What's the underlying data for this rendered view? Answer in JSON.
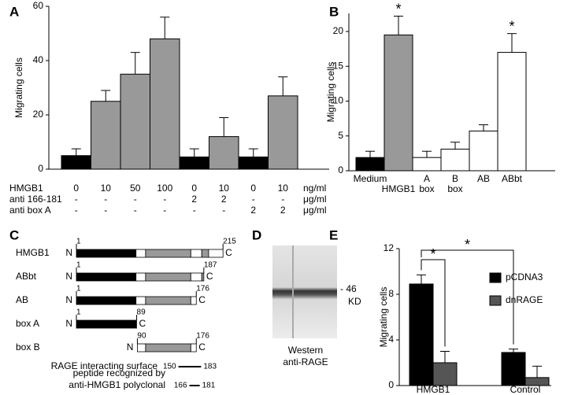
{
  "panel_labels": [
    "A",
    "B",
    "C",
    "D",
    "E"
  ],
  "chart_data": [
    {
      "type": "bar",
      "ylabel": "Migrating cells",
      "categories": [
        "0",
        "10",
        "50",
        "100",
        "0",
        "10",
        "0",
        "10"
      ],
      "values": [
        5,
        25,
        35,
        48,
        4.5,
        12,
        4.5,
        27
      ],
      "errors": [
        2.5,
        4,
        8,
        8,
        3,
        7,
        3,
        7
      ],
      "colors": [
        "#000000",
        "#999999",
        "#999999",
        "#999999",
        "#000000",
        "#999999",
        "#000000",
        "#999999"
      ],
      "ylim": [
        0,
        60
      ],
      "yticks": [
        0,
        20,
        40,
        60
      ],
      "category_row_label": "HMGB1",
      "category_row_unit": "ng/ml",
      "treatments": [
        {
          "name": "anti 166-181",
          "labels": [
            "-",
            "-",
            "-",
            "-",
            "2",
            "2",
            "-",
            "-"
          ],
          "unit": "μg/ml"
        },
        {
          "name": "anti box A",
          "labels": [
            "-",
            "-",
            "-",
            "-",
            "-",
            "-",
            "2",
            "2"
          ],
          "unit": "μg/ml"
        }
      ]
    },
    {
      "type": "bar",
      "ylabel": "Migrating cells",
      "categories": [
        "Medium",
        "HMGB1",
        "A box",
        "B box",
        "AB",
        "ABbt"
      ],
      "values": [
        1.9,
        19.5,
        1.9,
        3.1,
        5.7,
        17
      ],
      "errors": [
        0.9,
        2.7,
        0.9,
        1.0,
        0.9,
        2.7
      ],
      "colors": [
        "#000000",
        "#999999",
        "#ffffff",
        "#ffffff",
        "#ffffff",
        "#ffffff"
      ],
      "value_annotations": [
        null,
        "*",
        null,
        null,
        null,
        "*"
      ],
      "ylim": [
        0,
        22.6
      ],
      "yticks": [
        0,
        5,
        10,
        15,
        20
      ]
    },
    {
      "type": "grouped_bar",
      "ylabel": "Migrating cells",
      "categories": [
        "HMGB1",
        "Control"
      ],
      "series": [
        {
          "name": "pCDNA3",
          "color": "#000000",
          "values": [
            8.9,
            2.9
          ],
          "errors": [
            0.8,
            0.3
          ]
        },
        {
          "name": "dnRAGE",
          "color": "#555555",
          "values": [
            2.0,
            0.7
          ],
          "errors": [
            1.0,
            1.0
          ]
        }
      ],
      "ylim": [
        0,
        12
      ],
      "yticks": [
        0,
        4,
        8,
        12
      ],
      "significance": [
        "*",
        "*"
      ]
    }
  ],
  "terminus_labels": [
    "N",
    "C"
  ],
  "constructs": [
    {
      "name": "HMGB1",
      "start": 1,
      "end": 215
    },
    {
      "name": "ABbt",
      "start": 1,
      "end": 187
    },
    {
      "name": "AB",
      "start": 1,
      "end": 176
    },
    {
      "name": "box A",
      "start": 1,
      "end": 89
    },
    {
      "name": "box B",
      "start": 90,
      "end": 176
    }
  ],
  "regions": [
    {
      "label": [
        "RAGE interacting surface"
      ],
      "start": 150,
      "end": 183
    },
    {
      "label": [
        "peptide recognized by",
        "anti-HMGB1 polyclonal"
      ],
      "start": 166,
      "end": 181
    }
  ],
  "blot": {
    "marker": "- 46",
    "unit": "KD",
    "caption": [
      "Western",
      "anti-RAGE"
    ]
  }
}
